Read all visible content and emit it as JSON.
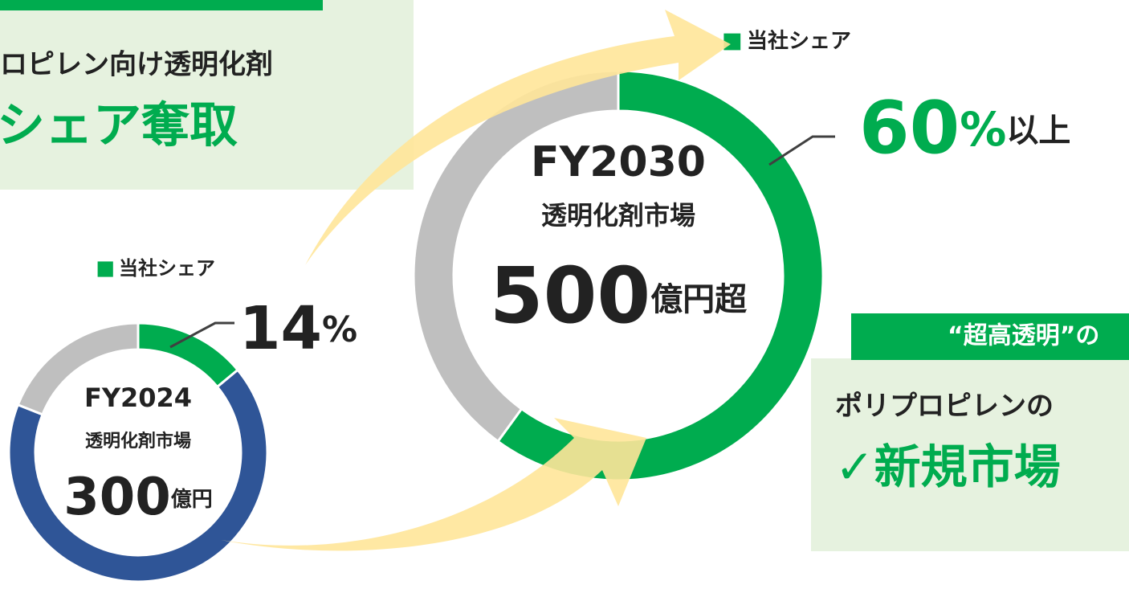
{
  "chart_data": [
    {
      "type": "pie",
      "donut": true,
      "label": "FY2024",
      "subtitle": "透明化剤市場",
      "total_value": 300,
      "total_unit": "億円",
      "categories": [
        "当社シェア",
        null,
        null
      ],
      "values": [
        14,
        67,
        19
      ],
      "value_labels": [
        "14%",
        null,
        null
      ],
      "colors": [
        "#00ac4f",
        "#2f5597",
        "#bfbfbf"
      ]
    },
    {
      "type": "pie",
      "donut": true,
      "label": "FY2030",
      "subtitle": "透明化剤市場",
      "total_value": 500,
      "total_unit": "億円超",
      "categories": [
        "当社シェア",
        null
      ],
      "values": [
        60,
        40
      ],
      "value_labels": [
        "60%以上",
        null
      ],
      "colors": [
        "#00ac4f",
        "#bfbfbf"
      ]
    }
  ],
  "left_panel": {
    "line1": "ロピレン向け透明化剤",
    "line2": "シェア奪取"
  },
  "right_panel": {
    "tag": "“超高透明”の",
    "line1": "ポリプロピレンの",
    "line2": "✓新規市場"
  }
}
